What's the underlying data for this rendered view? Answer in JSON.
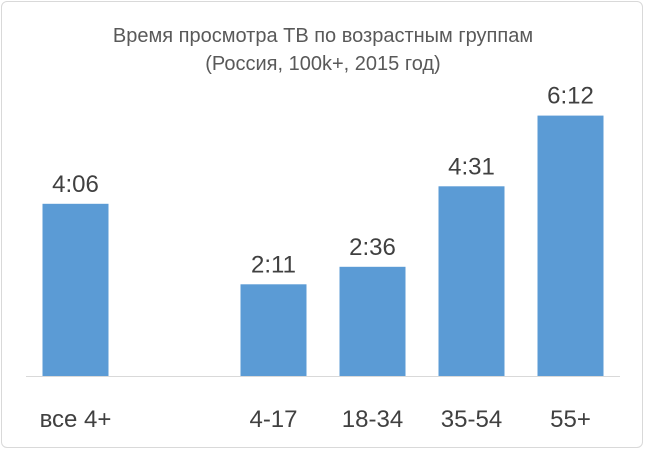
{
  "chart_data": {
    "type": "bar",
    "title": "Время просмотра ТВ по возрастным группам",
    "subtitle": "(Россия, 100k+, 2015 год)",
    "categories": [
      "все 4+",
      "",
      "4-17",
      "18-34",
      "35-54",
      "55+"
    ],
    "values": [
      246,
      null,
      131,
      156,
      271,
      372
    ],
    "value_labels": [
      "4:06",
      "",
      "2:11",
      "2:36",
      "4:31",
      "6:12"
    ],
    "value_unit": "minutes",
    "ylim": [
      0,
      400
    ],
    "grid": false,
    "legend": "none",
    "bar_color": "#5b9bd5",
    "axis_color": "#d9d9d9"
  }
}
